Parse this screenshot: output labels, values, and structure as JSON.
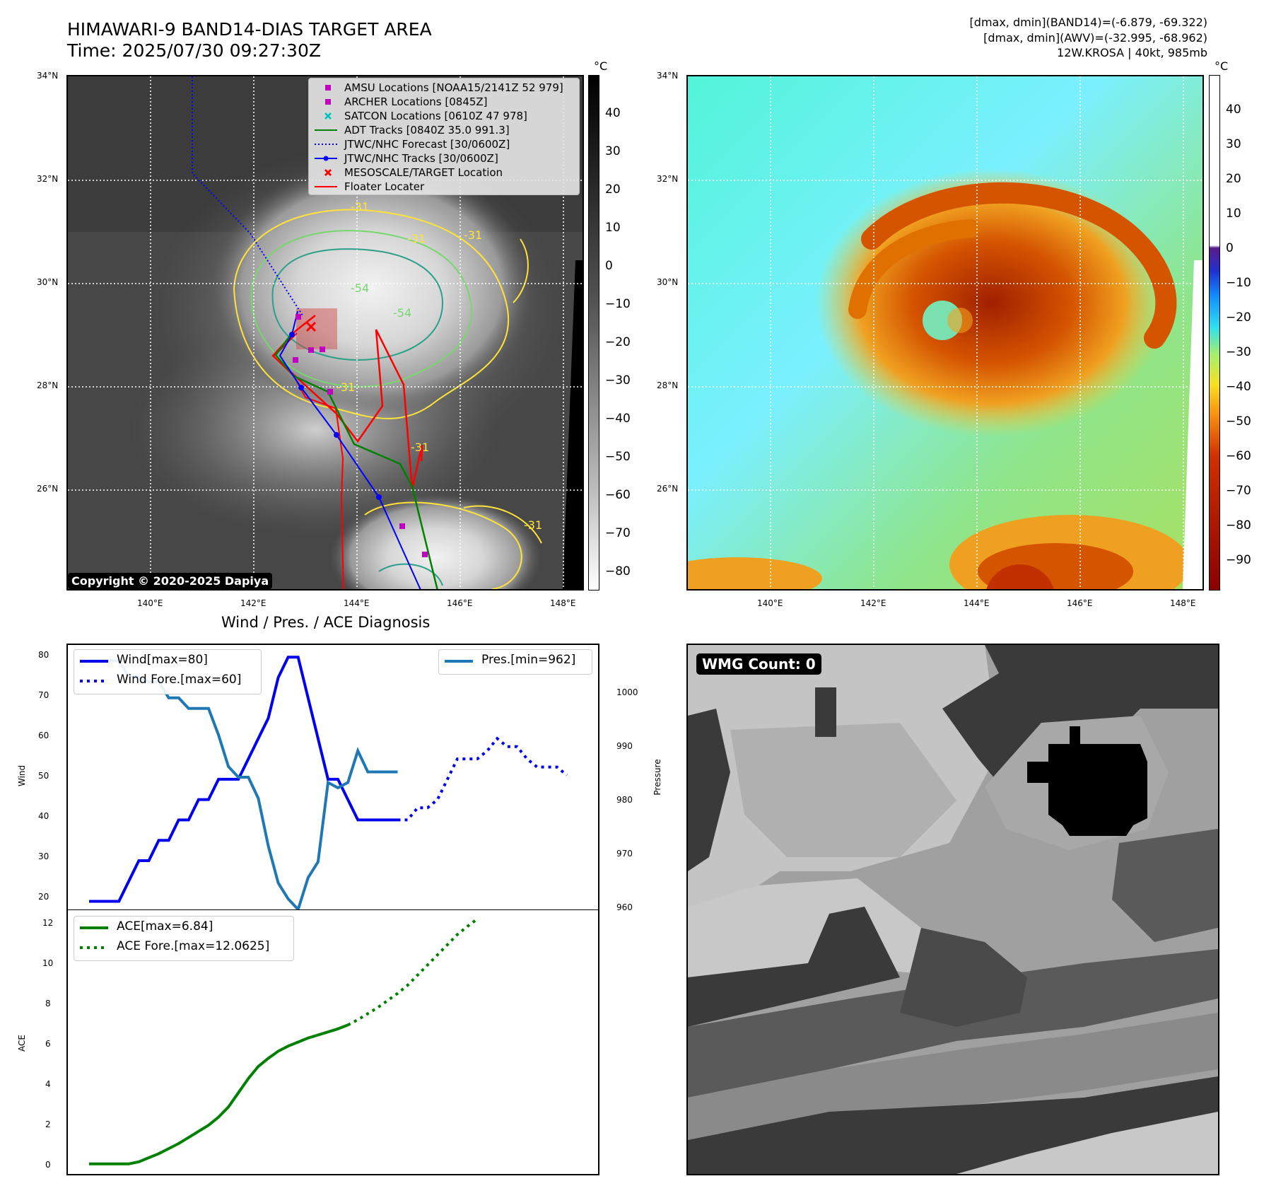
{
  "header": {
    "title": "HIMAWARI-9 BAND14-DIAS TARGET AREA",
    "time": "Time: 2025/07/30 09:27:30Z",
    "info_band14": "[dmax, dmin](BAND14)=(-6.879, -69.322)",
    "info_awv": "[dmax, dmin](AWV)=(-32.995, -68.962)",
    "info_storm": "12W.KROSA | 40kt, 985mb"
  },
  "ir_map": {
    "lat_ticks": [
      "34°N",
      "32°N",
      "30°N",
      "28°N",
      "26°N"
    ],
    "lon_ticks": [
      "140°E",
      "142°E",
      "144°E",
      "146°E",
      "148°E"
    ],
    "colorbar": {
      "unit": "°C",
      "ticks": [
        "40",
        "30",
        "20",
        "10",
        "0",
        "−10",
        "−20",
        "−30",
        "−40",
        "−50",
        "−60",
        "−70",
        "−80"
      ]
    },
    "copyright": "Copyright © 2020-2025 Dapiya",
    "legend": [
      {
        "label": "AMSU Locations [NOAA15/2141Z 52 979]",
        "color": "#c000c0",
        "icon": "square-marker"
      },
      {
        "label": "ARCHER Locations [0845Z]",
        "color": "#c000c0",
        "icon": "square-marker"
      },
      {
        "label": "SATCON Locations [0610Z 47 978]",
        "color": "#00bfbf",
        "icon": "x-marker"
      },
      {
        "label": "ADT Tracks [0840Z 35.0 991.3]",
        "color": "#008000",
        "icon": "solid-line"
      },
      {
        "label": "JTWC/NHC Forecast [30/0600Z]",
        "color": "#0000ff",
        "icon": "dotted-line"
      },
      {
        "label": "JTWC/NHC Tracks [30/0600Z]",
        "color": "#0000ff",
        "icon": "line-dot"
      },
      {
        "label": "MESOSCALE/TARGET Location",
        "color": "#ff0000",
        "icon": "x-marker"
      },
      {
        "label": "Floater Locater",
        "color": "#ff0000",
        "icon": "solid-line"
      }
    ],
    "contour_labels": [
      "-31",
      "-31",
      "-31",
      "-54",
      "-54",
      "-31",
      "-31",
      "-31"
    ]
  },
  "awv_map": {
    "lat_ticks": [
      "34°N",
      "32°N",
      "30°N",
      "28°N",
      "26°N"
    ],
    "lon_ticks": [
      "140°E",
      "142°E",
      "144°E",
      "146°E",
      "148°E"
    ],
    "colorbar": {
      "unit": "°C",
      "ticks": [
        "40",
        "30",
        "20",
        "10",
        "0",
        "−10",
        "−20",
        "−30",
        "−40",
        "−50",
        "−60",
        "−70",
        "−80",
        "−90"
      ]
    }
  },
  "diagnosis": {
    "title": "Wind / Pres. / ACE Diagnosis",
    "wind_ylabel": "Wind",
    "pres_ylabel": "Pressure",
    "ace_ylabel": "ACE",
    "wind_ticks": [
      "80",
      "70",
      "60",
      "50",
      "40",
      "30",
      "20"
    ],
    "pres_ticks": [
      "1000",
      "990",
      "980",
      "970",
      "960"
    ],
    "ace_ticks": [
      "12",
      "10",
      "8",
      "6",
      "4",
      "2",
      "0"
    ],
    "legend_wind": "Wind[max=80]",
    "legend_wind_fore": "Wind Fore.[max=60]",
    "legend_pres": "Pres.[min=962]",
    "legend_ace": "ACE[max=6.84]",
    "legend_ace_fore": "ACE Fore.[max=12.0625]"
  },
  "wmg": {
    "label": "WMG Count: 0"
  },
  "colors": {
    "wind": "#0000ee",
    "pressure": "#1f77b4",
    "ace": "#008000",
    "track_red": "#ff0000"
  },
  "chart_data": [
    {
      "type": "line",
      "title": "Wind / Pres. / ACE Diagnosis",
      "ylabel": "Wind",
      "ylim": [
        18,
        83
      ],
      "x": [
        0,
        1,
        2,
        3,
        4,
        5,
        6,
        7,
        8,
        9,
        10,
        11,
        12,
        13,
        14,
        15,
        16,
        17,
        18,
        19,
        20,
        21,
        22,
        23,
        24,
        25,
        26,
        27,
        28,
        29,
        30,
        31,
        32,
        33,
        34,
        35,
        36,
        37,
        38,
        39,
        40,
        41,
        42,
        43,
        44,
        45,
        46,
        47,
        48,
        49
      ],
      "series": [
        {
          "name": "Wind[max=80]",
          "values": [
            20,
            20,
            20,
            20,
            25,
            30,
            30,
            35,
            35,
            40,
            40,
            45,
            45,
            50,
            50,
            50,
            55,
            60,
            65,
            75,
            80,
            80,
            70,
            60,
            50,
            50,
            45,
            40,
            40,
            40,
            40,
            40,
            null,
            null,
            null,
            null,
            null,
            null,
            null,
            null,
            null,
            null,
            null,
            null,
            null,
            null,
            null,
            null,
            null,
            null
          ]
        },
        {
          "name": "Wind Fore.[max=60]",
          "values": [
            null,
            null,
            null,
            null,
            null,
            null,
            null,
            null,
            null,
            null,
            null,
            null,
            null,
            null,
            null,
            null,
            null,
            null,
            null,
            null,
            null,
            null,
            null,
            null,
            null,
            null,
            null,
            null,
            null,
            null,
            null,
            40,
            40,
            43,
            43,
            45,
            50,
            55,
            55,
            55,
            57,
            60,
            58,
            58,
            55,
            53,
            53,
            53,
            51,
            null
          ]
        }
      ]
    },
    {
      "type": "line",
      "ylabel": "Pressure",
      "ylim": [
        960,
        1010
      ],
      "x": [
        0,
        1,
        2,
        3,
        4,
        5,
        6,
        7,
        8,
        9,
        10,
        11,
        12,
        13,
        14,
        15,
        16,
        17,
        18,
        19,
        20,
        21,
        22,
        23,
        24,
        25,
        26,
        27,
        28,
        29,
        30,
        31
      ],
      "series": [
        {
          "name": "Pres.[min=962]",
          "values": [
            1007,
            1007,
            1007,
            1007,
            1004,
            1004,
            1003,
            1003,
            1000,
            1000,
            998,
            998,
            998,
            993,
            987,
            985,
            985,
            981,
            972,
            965,
            962,
            960,
            966,
            969,
            984,
            983,
            984,
            990,
            986,
            986,
            986,
            986
          ]
        }
      ]
    },
    {
      "type": "line",
      "ylabel": "ACE",
      "ylim": [
        -0.5,
        12.5
      ],
      "x": [
        0,
        1,
        2,
        3,
        4,
        5,
        6,
        7,
        8,
        9,
        10,
        11,
        12,
        13,
        14,
        15,
        16,
        17,
        18,
        19,
        20,
        21,
        22,
        23,
        24,
        25,
        26,
        27,
        28,
        29,
        30,
        31,
        32,
        33,
        34,
        35,
        36,
        37,
        38,
        39,
        40,
        41,
        42,
        43,
        44,
        45,
        46,
        47,
        48,
        49
      ],
      "series": [
        {
          "name": "ACE[max=6.84]",
          "values": [
            0,
            0,
            0,
            0,
            0,
            0.1,
            0.3,
            0.5,
            0.75,
            1.0,
            1.3,
            1.6,
            1.9,
            2.3,
            2.8,
            3.5,
            4.2,
            4.8,
            5.2,
            5.55,
            5.8,
            6.0,
            6.2,
            6.35,
            6.5,
            6.65,
            6.84,
            null,
            null,
            null,
            null,
            null,
            null,
            null,
            null,
            null,
            null,
            null,
            null,
            null,
            null,
            null,
            null,
            null,
            null,
            null,
            null,
            null,
            null,
            null
          ]
        },
        {
          "name": "ACE Fore.[max=12.0625]",
          "values": [
            null,
            null,
            null,
            null,
            null,
            null,
            null,
            null,
            null,
            null,
            null,
            null,
            null,
            null,
            null,
            null,
            null,
            null,
            null,
            null,
            null,
            null,
            null,
            null,
            null,
            null,
            6.84,
            7.1,
            7.4,
            7.7,
            8.05,
            8.4,
            8.8,
            9.3,
            9.8,
            10.3,
            10.8,
            11.3,
            11.7,
            12.06,
            null,
            null,
            null,
            null,
            null,
            null,
            null,
            null,
            null,
            null
          ]
        }
      ]
    }
  ]
}
